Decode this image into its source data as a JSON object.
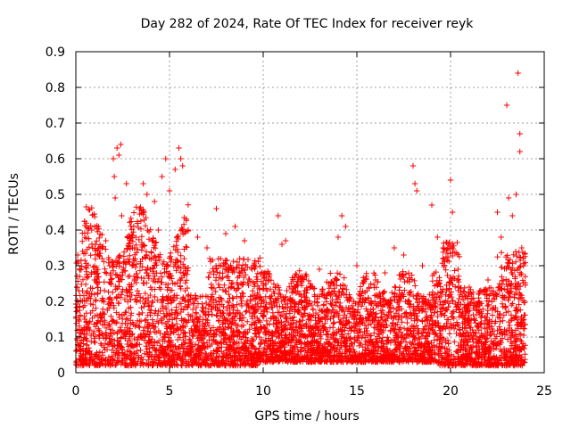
{
  "chart_data": {
    "type": "scatter",
    "title": "Day 282 of 2024, Rate Of TEC Index for receiver reyk",
    "xlabel": "GPS time / hours",
    "ylabel": "ROTI / TECUs",
    "xlim": [
      0,
      25
    ],
    "ylim": [
      0,
      0.9
    ],
    "x_ticks": [
      "0",
      "5",
      "10",
      "15",
      "20",
      "25"
    ],
    "y_ticks": [
      "0",
      "0.1",
      "0.2",
      "0.3",
      "0.4",
      "0.5",
      "0.6",
      "0.7",
      "0.8",
      "0.9"
    ],
    "grid": true,
    "marker": "+",
    "color": "#ff0000",
    "series": [
      {
        "points": [
          [
            0.1,
            0.33
          ],
          [
            0.2,
            0.27
          ],
          [
            0.4,
            0.06
          ],
          [
            0.6,
            0.09
          ],
          [
            0.85,
            0.4
          ],
          [
            1.0,
            0.26
          ],
          [
            1.2,
            0.41
          ],
          [
            1.4,
            0.32
          ],
          [
            1.6,
            0.37
          ],
          [
            1.8,
            0.3
          ],
          [
            2.0,
            0.6
          ],
          [
            2.05,
            0.55
          ],
          [
            2.1,
            0.49
          ],
          [
            2.2,
            0.63
          ],
          [
            2.3,
            0.61
          ],
          [
            2.4,
            0.64
          ],
          [
            2.45,
            0.44
          ],
          [
            2.7,
            0.53
          ],
          [
            3.0,
            0.3
          ],
          [
            3.6,
            0.53
          ],
          [
            3.8,
            0.5
          ],
          [
            4.2,
            0.48
          ],
          [
            4.4,
            0.4
          ],
          [
            4.6,
            0.55
          ],
          [
            4.8,
            0.6
          ],
          [
            5.0,
            0.51
          ],
          [
            5.3,
            0.57
          ],
          [
            5.5,
            0.63
          ],
          [
            5.6,
            0.6
          ],
          [
            5.7,
            0.58
          ],
          [
            6.0,
            0.4
          ],
          [
            6.5,
            0.38
          ],
          [
            7.0,
            0.35
          ],
          [
            7.5,
            0.46
          ],
          [
            8.0,
            0.39
          ],
          [
            8.5,
            0.41
          ],
          [
            9.0,
            0.37
          ],
          [
            9.5,
            0.3
          ],
          [
            10.0,
            0.25
          ],
          [
            10.8,
            0.44
          ],
          [
            11.0,
            0.36
          ],
          [
            11.2,
            0.37
          ],
          [
            12.0,
            0.22
          ],
          [
            12.5,
            0.24
          ],
          [
            13.0,
            0.29
          ],
          [
            13.5,
            0.25
          ],
          [
            14.0,
            0.38
          ],
          [
            14.2,
            0.44
          ],
          [
            14.4,
            0.41
          ],
          [
            15.0,
            0.3
          ],
          [
            15.5,
            0.27
          ],
          [
            16.0,
            0.26
          ],
          [
            16.5,
            0.28
          ],
          [
            17.0,
            0.35
          ],
          [
            17.5,
            0.33
          ],
          [
            18.0,
            0.58
          ],
          [
            18.1,
            0.53
          ],
          [
            18.2,
            0.51
          ],
          [
            18.5,
            0.3
          ],
          [
            19.0,
            0.47
          ],
          [
            19.3,
            0.38
          ],
          [
            19.6,
            0.35
          ],
          [
            20.0,
            0.54
          ],
          [
            20.1,
            0.45
          ],
          [
            20.4,
            0.29
          ],
          [
            21.0,
            0.24
          ],
          [
            21.5,
            0.22
          ],
          [
            22.0,
            0.26
          ],
          [
            22.5,
            0.45
          ],
          [
            22.7,
            0.38
          ],
          [
            23.0,
            0.75
          ],
          [
            23.1,
            0.49
          ],
          [
            23.3,
            0.44
          ],
          [
            23.5,
            0.5
          ],
          [
            23.6,
            0.84
          ],
          [
            23.7,
            0.67
          ],
          [
            23.7,
            0.62
          ],
          [
            23.8,
            0.35
          ]
        ]
      }
    ],
    "note_dense_band": "Most of the ~9000 points lie between 0.02 and 0.35 across all hours; denser activity 0–6 h and 19.5–24 h"
  }
}
